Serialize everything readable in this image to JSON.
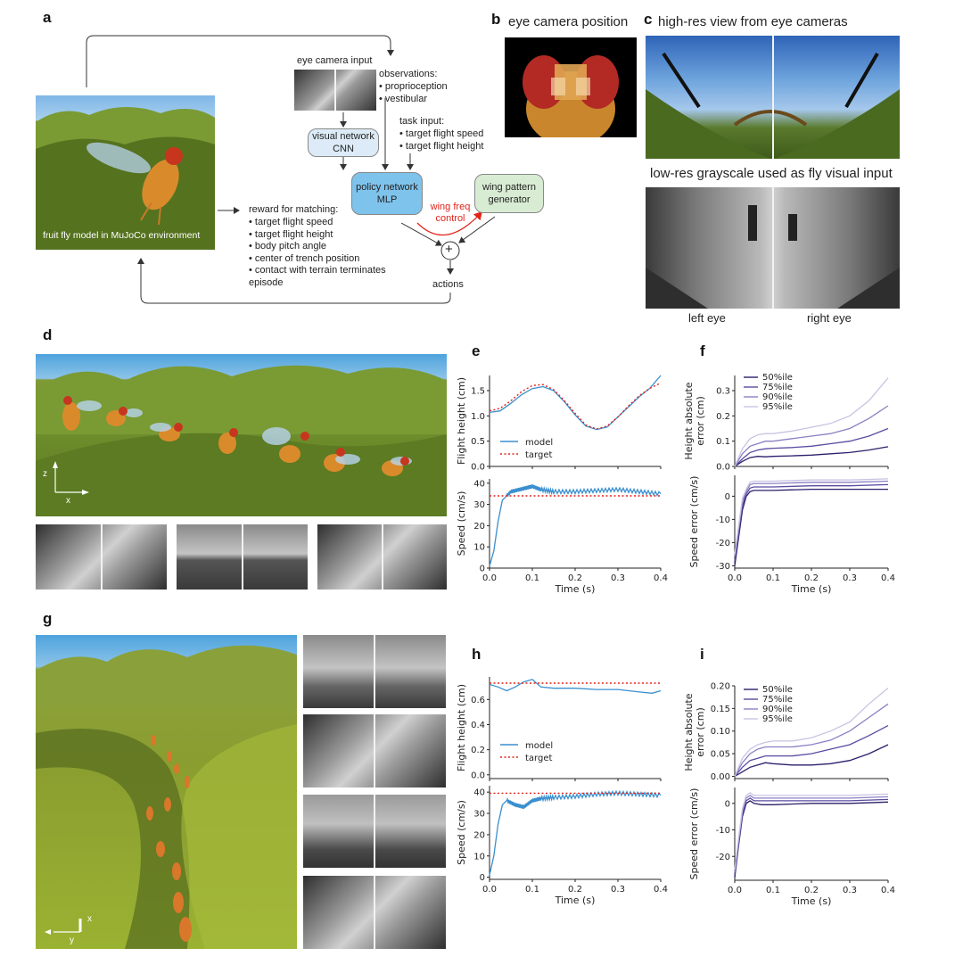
{
  "panels": {
    "a": "a",
    "b": "b",
    "c": "c",
    "d": "d",
    "e": "e",
    "f": "f",
    "g": "g",
    "h": "h",
    "i": "i"
  },
  "a": {
    "scene_caption": "fruit fly model in MuJoCo environment",
    "eye_camera_input": "eye camera input",
    "observations_title": "observations:",
    "observations": [
      "proprioception",
      "vestibular"
    ],
    "task_title": "task input:",
    "task_items": [
      "target flight speed",
      "target flight height"
    ],
    "visual_network": [
      "visual network",
      "CNN"
    ],
    "policy_network": [
      "policy network",
      "MLP"
    ],
    "wing_pattern": [
      "wing pattern",
      "generator"
    ],
    "wing_freq": [
      "wing freq",
      "control"
    ],
    "plus": "+",
    "actions": "actions",
    "reward_title": "reward for matching:",
    "reward_items": [
      "target flight speed",
      "target flight height",
      "body pitch angle",
      "center of trench position",
      "contact with terrain terminates episode"
    ],
    "colors": {
      "visual_box": "#dcebf7",
      "policy_box": "#7ec3ec",
      "wing_box": "#d8ecd3",
      "wing_freq": "#e2231a"
    }
  },
  "b": {
    "title": "eye camera position"
  },
  "c": {
    "title_top": "high-res view from eye cameras",
    "title_bottom": "low-res grayscale used as fly visual input",
    "left_eye": "left eye",
    "right_eye": "right eye"
  },
  "d": {
    "axis_z": "z",
    "axis_x": "x"
  },
  "g": {
    "axis_x": "x",
    "axis_y": "y"
  },
  "e": {
    "legend_model": "model",
    "legend_target": "target",
    "chart_data": [
      {
        "type": "line",
        "ylabel": "Flight height (cm)",
        "xlim": [
          0,
          0.4
        ],
        "ylim": [
          0,
          1.8
        ],
        "yticks": [
          "0.0",
          "0.5",
          "1.0",
          "1.5"
        ],
        "ytick_values": [
          0,
          0.5,
          1.0,
          1.5
        ],
        "series": [
          {
            "name": "model",
            "color": "#3a8fcf",
            "style": "solid",
            "x": [
              0,
              0.025,
              0.05,
              0.075,
              0.1,
              0.125,
              0.15,
              0.175,
              0.2,
              0.225,
              0.25,
              0.275,
              0.3,
              0.325,
              0.35,
              0.375,
              0.4
            ],
            "y": [
              1.07,
              1.1,
              1.25,
              1.42,
              1.54,
              1.58,
              1.5,
              1.28,
              1.02,
              0.8,
              0.73,
              0.78,
              0.98,
              1.18,
              1.38,
              1.55,
              1.8
            ]
          },
          {
            "name": "target",
            "color": "#e2231a",
            "style": "dotted",
            "x": [
              0,
              0.025,
              0.05,
              0.075,
              0.1,
              0.125,
              0.15,
              0.175,
              0.2,
              0.225,
              0.25,
              0.275,
              0.3,
              0.325,
              0.35,
              0.375,
              0.4
            ],
            "y": [
              1.1,
              1.15,
              1.3,
              1.48,
              1.6,
              1.62,
              1.52,
              1.3,
              1.05,
              0.82,
              0.74,
              0.8,
              0.98,
              1.2,
              1.4,
              1.55,
              1.65
            ]
          }
        ]
      },
      {
        "type": "line",
        "ylabel": "Speed (cm/s)",
        "xlabel": "Time (s)",
        "xlim": [
          0,
          0.4
        ],
        "ylim": [
          0,
          42
        ],
        "xticks": [
          "0.0",
          "0.1",
          "0.2",
          "0.3",
          "0.4"
        ],
        "xtick_values": [
          0,
          0.1,
          0.2,
          0.3,
          0.4
        ],
        "yticks": [
          "0",
          "10",
          "20",
          "30",
          "40"
        ],
        "ytick_values": [
          0,
          10,
          20,
          30,
          40
        ],
        "series": [
          {
            "name": "model",
            "color": "#3a8fcf",
            "style": "jagged",
            "x": [
              0,
              0.01,
              0.02,
              0.03,
              0.05,
              0.07,
              0.09,
              0.1,
              0.12,
              0.15,
              0.2,
              0.25,
              0.3,
              0.35,
              0.4
            ],
            "y": [
              1,
              8,
              22,
              32,
              36,
              37,
              38,
              38.5,
              37,
              36,
              36,
              36.5,
              37,
              36,
              35
            ]
          },
          {
            "name": "target",
            "color": "#e2231a",
            "style": "dotted",
            "x": [
              0,
              0.4
            ],
            "y": [
              34,
              34
            ]
          }
        ]
      }
    ]
  },
  "f": {
    "legend": [
      "50%ile",
      "75%ile",
      "90%ile",
      "95%ile"
    ],
    "chart_data": [
      {
        "type": "line",
        "ylabel": "Height absolute error (cm)",
        "xlim": [
          0,
          0.4
        ],
        "ylim": [
          0,
          0.36
        ],
        "yticks": [
          "0.0",
          "0.1",
          "0.2",
          "0.3"
        ],
        "ytick_values": [
          0,
          0.1,
          0.2,
          0.3
        ],
        "x": [
          0,
          0.02,
          0.04,
          0.06,
          0.08,
          0.1,
          0.15,
          0.2,
          0.25,
          0.3,
          0.35,
          0.4
        ],
        "series": [
          {
            "name": "50%ile",
            "color": "#2b1f6b",
            "values": [
              0.0,
              0.02,
              0.035,
              0.04,
              0.038,
              0.04,
              0.042,
              0.045,
              0.05,
              0.055,
              0.065,
              0.078
            ]
          },
          {
            "name": "75%ile",
            "color": "#5a4aa0",
            "values": [
              0.0,
              0.03,
              0.055,
              0.065,
              0.07,
              0.072,
              0.075,
              0.08,
              0.09,
              0.1,
              0.12,
              0.15
            ]
          },
          {
            "name": "90%ile",
            "color": "#8b7fc4",
            "values": [
              0.0,
              0.05,
              0.08,
              0.09,
              0.1,
              0.1,
              0.11,
              0.12,
              0.13,
              0.15,
              0.19,
              0.24
            ]
          },
          {
            "name": "95%ile",
            "color": "#c9c3e3",
            "values": [
              0.0,
              0.07,
              0.11,
              0.125,
              0.13,
              0.13,
              0.14,
              0.155,
              0.17,
              0.2,
              0.26,
              0.35
            ]
          }
        ]
      },
      {
        "type": "line",
        "ylabel": "Speed error (cm/s)",
        "xlabel": "Time (s)",
        "xlim": [
          0,
          0.4
        ],
        "ylim": [
          -31,
          9
        ],
        "xticks": [
          "0.0",
          "0.1",
          "0.2",
          "0.3",
          "0.4"
        ],
        "xtick_values": [
          0,
          0.1,
          0.2,
          0.3,
          0.4
        ],
        "yticks": [
          "-30",
          "-20",
          "-10",
          "0"
        ],
        "ytick_values": [
          -30,
          -20,
          -10,
          0
        ],
        "x": [
          0,
          0.01,
          0.02,
          0.03,
          0.04,
          0.05,
          0.07,
          0.1,
          0.2,
          0.3,
          0.4
        ],
        "series": [
          {
            "name": "50%ile",
            "color": "#2b1f6b",
            "values": [
              -30,
              -18,
              -6,
              0,
              2,
              2.5,
              2.5,
              2.5,
              3,
              3,
              3
            ]
          },
          {
            "name": "75%ile",
            "color": "#5a4aa0",
            "values": [
              -28,
              -16,
              -4,
              1,
              3.5,
              4,
              4,
              4,
              4.5,
              4.5,
              5
            ]
          },
          {
            "name": "90%ile",
            "color": "#8b7fc4",
            "values": [
              -26,
              -14,
              -2,
              2,
              5,
              5.5,
              5.5,
              5.5,
              6,
              6,
              6.5
            ]
          },
          {
            "name": "95%ile",
            "color": "#c9c3e3",
            "values": [
              -25,
              -13,
              -1,
              3,
              6,
              6.5,
              6.5,
              6.5,
              7,
              7,
              7.5
            ]
          }
        ]
      }
    ]
  },
  "h": {
    "legend_model": "model",
    "legend_target": "target",
    "chart_data": [
      {
        "type": "line",
        "ylabel": "Flight height (cm)",
        "xlim": [
          0,
          0.4
        ],
        "ylim": [
          -0.03,
          0.78
        ],
        "yticks": [
          "0.0",
          "0.2",
          "0.4",
          "0.6"
        ],
        "ytick_values": [
          0,
          0.2,
          0.4,
          0.6
        ],
        "series": [
          {
            "name": "model",
            "color": "#3a8fcf",
            "style": "solid",
            "x": [
              0,
              0.02,
              0.04,
              0.06,
              0.08,
              0.1,
              0.12,
              0.15,
              0.2,
              0.25,
              0.3,
              0.35,
              0.38,
              0.4
            ],
            "y": [
              0.72,
              0.7,
              0.67,
              0.7,
              0.74,
              0.76,
              0.7,
              0.69,
              0.69,
              0.68,
              0.68,
              0.66,
              0.65,
              0.67
            ]
          },
          {
            "name": "target",
            "color": "#e2231a",
            "style": "dotted",
            "x": [
              0,
              0.4
            ],
            "y": [
              0.73,
              0.73
            ]
          }
        ]
      },
      {
        "type": "line",
        "ylabel": "Speed (cm/s)",
        "xlabel": "Time (s)",
        "xlim": [
          0,
          0.4
        ],
        "ylim": [
          -1,
          43
        ],
        "xticks": [
          "0.0",
          "0.1",
          "0.2",
          "0.3",
          "0.4"
        ],
        "xtick_values": [
          0,
          0.1,
          0.2,
          0.3,
          0.4
        ],
        "yticks": [
          "0",
          "10",
          "20",
          "30",
          "40"
        ],
        "ytick_values": [
          0,
          10,
          20,
          30,
          40
        ],
        "series": [
          {
            "name": "model",
            "color": "#3a8fcf",
            "style": "jagged",
            "x": [
              0,
              0.01,
              0.02,
              0.03,
              0.04,
              0.06,
              0.08,
              0.1,
              0.12,
              0.15,
              0.2,
              0.25,
              0.3,
              0.35,
              0.4
            ],
            "y": [
              1,
              10,
              25,
              34,
              36,
              34,
              33,
              36,
              37,
              37.5,
              38,
              39,
              39.5,
              39,
              38.5
            ]
          },
          {
            "name": "target",
            "color": "#e2231a",
            "style": "dotted",
            "x": [
              0,
              0.4
            ],
            "y": [
              39.5,
              39.5
            ]
          }
        ]
      }
    ]
  },
  "i": {
    "legend": [
      "50%ile",
      "75%ile",
      "90%ile",
      "95%ile"
    ],
    "chart_data": [
      {
        "type": "line",
        "ylabel": "Height absolute error (cm)",
        "xlim": [
          0,
          0.4
        ],
        "ylim": [
          -0.005,
          0.2
        ],
        "yticks": [
          "0.00",
          "0.05",
          "0.10",
          "0.15",
          "0.20"
        ],
        "ytick_values": [
          0,
          0.05,
          0.1,
          0.15,
          0.2
        ],
        "x": [
          0,
          0.02,
          0.04,
          0.06,
          0.08,
          0.1,
          0.15,
          0.2,
          0.25,
          0.3,
          0.35,
          0.4
        ],
        "series": [
          {
            "name": "50%ile",
            "color": "#2b1f6b",
            "values": [
              0.0,
              0.01,
              0.02,
              0.025,
              0.03,
              0.028,
              0.025,
              0.025,
              0.028,
              0.035,
              0.05,
              0.07
            ]
          },
          {
            "name": "75%ile",
            "color": "#5a4aa0",
            "values": [
              0.0,
              0.02,
              0.035,
              0.04,
              0.045,
              0.045,
              0.045,
              0.05,
              0.06,
              0.07,
              0.09,
              0.112
            ]
          },
          {
            "name": "90%ile",
            "color": "#8b7fc4",
            "values": [
              0.0,
              0.03,
              0.05,
              0.06,
              0.065,
              0.065,
              0.065,
              0.07,
              0.08,
              0.1,
              0.13,
              0.16
            ]
          },
          {
            "name": "95%ile",
            "color": "#c9c3e3",
            "values": [
              0.0,
              0.04,
              0.06,
              0.07,
              0.075,
              0.078,
              0.078,
              0.085,
              0.1,
              0.12,
              0.16,
              0.195
            ]
          }
        ]
      },
      {
        "type": "line",
        "ylabel": "Speed error (cm/s)",
        "xlabel": "Time (s)",
        "xlim": [
          0,
          0.4
        ],
        "ylim": [
          -29,
          6
        ],
        "xticks": [
          "0.0",
          "0.1",
          "0.2",
          "0.3",
          "0.4"
        ],
        "xtick_values": [
          0,
          0.1,
          0.2,
          0.3,
          0.4
        ],
        "yticks": [
          "-20",
          "-10",
          "0"
        ],
        "ytick_values": [
          -20,
          -10,
          0
        ],
        "x": [
          0,
          0.01,
          0.02,
          0.03,
          0.04,
          0.05,
          0.07,
          0.1,
          0.2,
          0.3,
          0.4
        ],
        "series": [
          {
            "name": "50%ile",
            "color": "#2b1f6b",
            "values": [
              -28,
              -16,
              -5,
              0,
              1,
              0,
              -0.5,
              -0.5,
              0,
              0,
              0.5
            ]
          },
          {
            "name": "75%ile",
            "color": "#5a4aa0",
            "values": [
              -27,
              -15,
              -4,
              1,
              2,
              1,
              1,
              1,
              1,
              1,
              1.5
            ]
          },
          {
            "name": "90%ile",
            "color": "#8b7fc4",
            "values": [
              -26,
              -14,
              -3,
              2,
              3,
              2,
              2,
              2,
              2,
              2,
              2.5
            ]
          },
          {
            "name": "95%ile",
            "color": "#c9c3e3",
            "values": [
              -25,
              -13,
              -2,
              3,
              4,
              3,
              3,
              3,
              3,
              3,
              3.5
            ]
          }
        ]
      }
    ]
  }
}
